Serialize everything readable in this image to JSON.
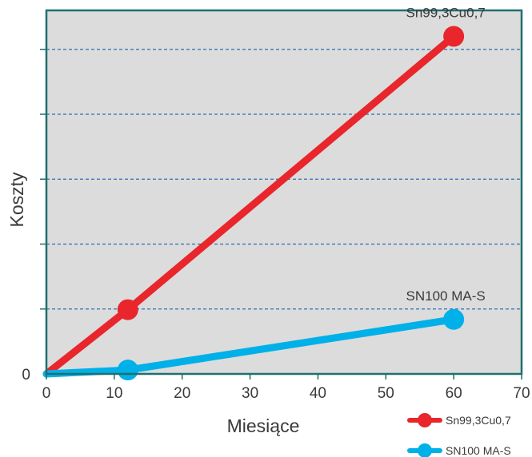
{
  "chart_data": {
    "type": "line",
    "xlabel": "Miesiące",
    "ylabel": "Koszty",
    "xlim": [
      0,
      70
    ],
    "ylim": [
      0,
      5
    ],
    "x_ticks": [
      "0",
      "10",
      "20",
      "30",
      "40",
      "50",
      "60",
      "70"
    ],
    "y_ticks": [
      "0"
    ],
    "grid": "horizontal dashed",
    "legend_position": "bottom-right",
    "series": [
      {
        "name": "Sn99,3Cu0,7",
        "color": "#e8262b",
        "x": [
          0,
          12,
          60
        ],
        "y": [
          0,
          0.99,
          5.2
        ],
        "annotation": "Sn99,3Cu0,7"
      },
      {
        "name": "SN100 MA-S",
        "color": "#00b0e8",
        "x": [
          0,
          12,
          60
        ],
        "y": [
          0,
          0.06,
          0.84
        ],
        "annotation": "SN100 MA-S"
      }
    ],
    "colors": {
      "plot_background": "#dcdcdc",
      "plot_border": "#1f6f6f",
      "grid": "#2c6fb0"
    }
  }
}
